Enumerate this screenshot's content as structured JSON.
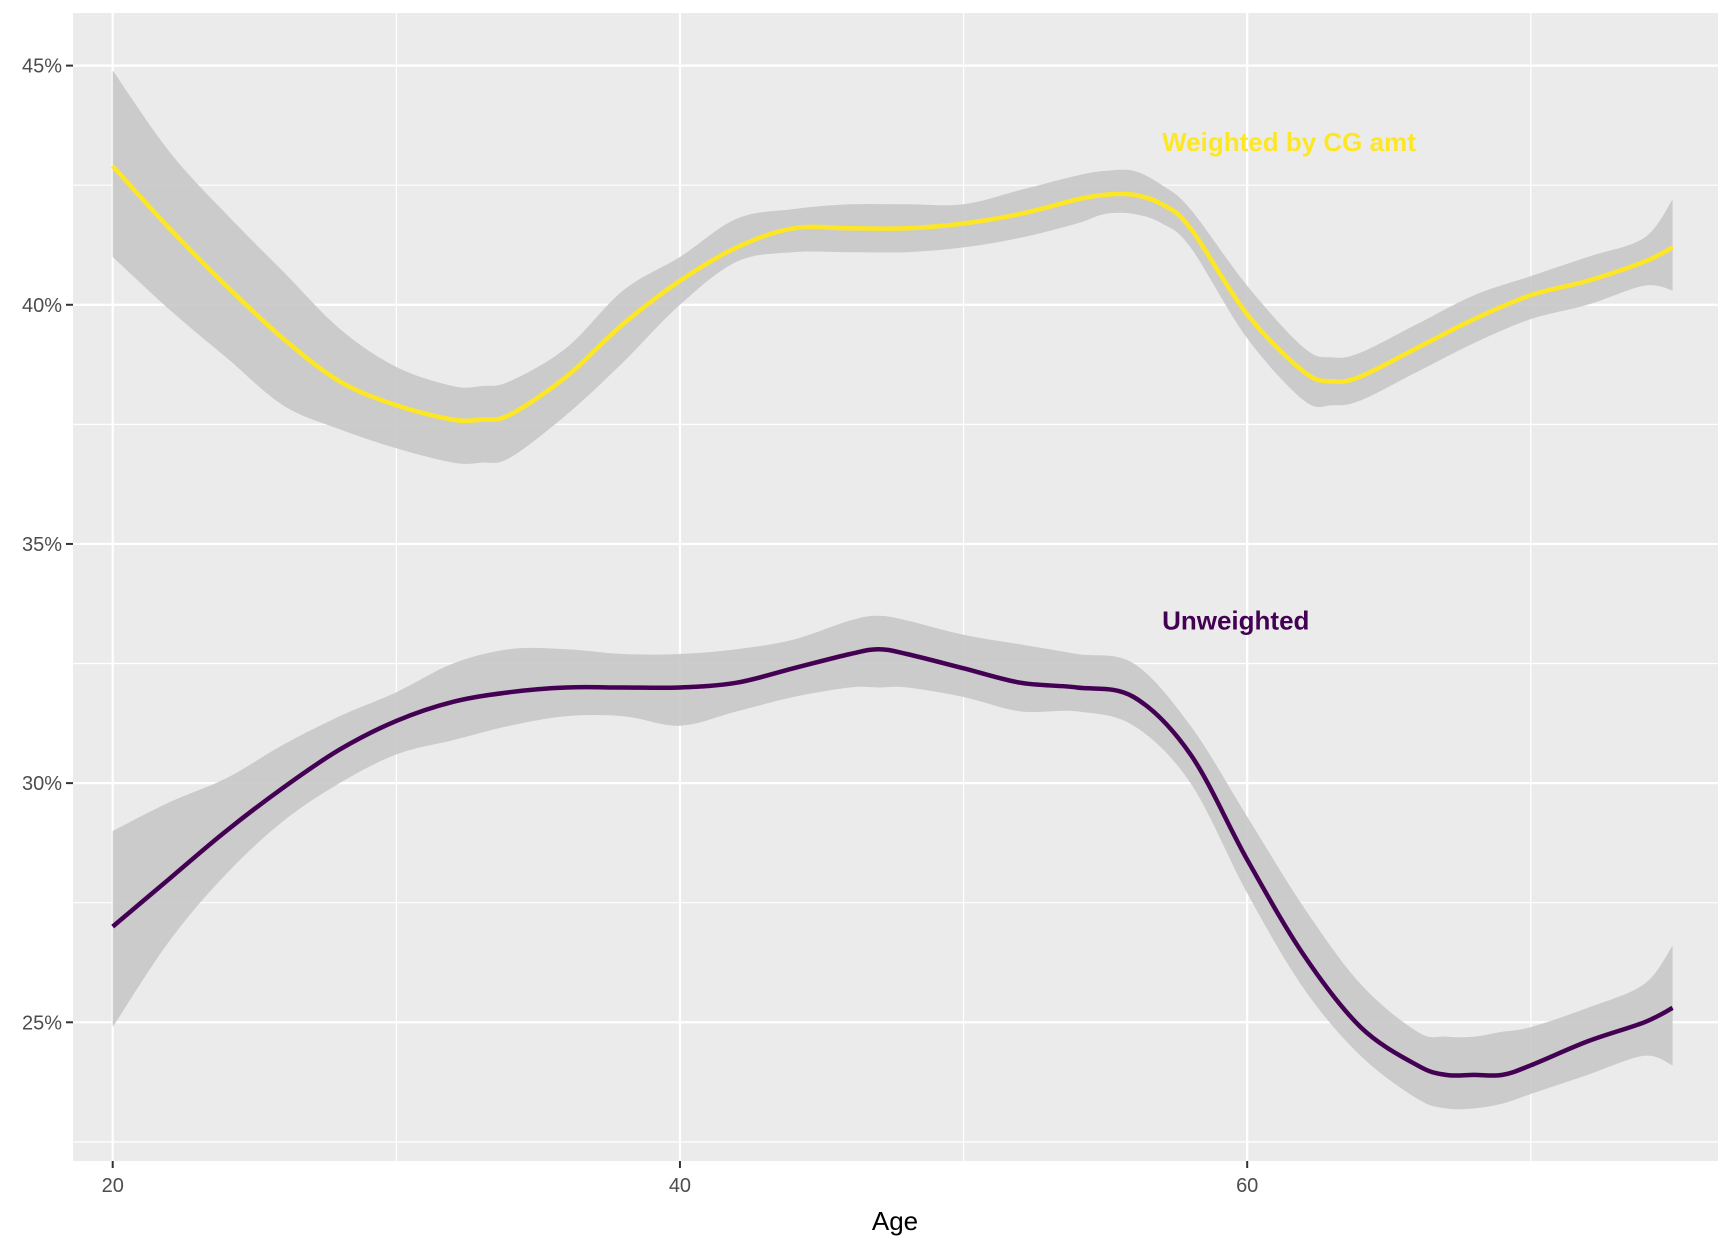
{
  "chart_data": {
    "type": "line",
    "title": "",
    "xlabel": "Age",
    "ylabel": "",
    "xlim": [
      18.6,
      76.6
    ],
    "ylim": [
      22.1,
      46.1
    ],
    "x_ticks": [
      20,
      40,
      60
    ],
    "x_tick_labels": [
      "20",
      "40",
      "60"
    ],
    "x_minor_ticks": [
      30,
      50,
      70
    ],
    "y_ticks": [
      25,
      30,
      35,
      40,
      45
    ],
    "y_tick_labels": [
      "25%",
      "30%",
      "35%",
      "40%",
      "45%"
    ],
    "y_minor_ticks": [
      22.5,
      27.5,
      32.5,
      37.5,
      42.5
    ],
    "grid": true,
    "legend": "none",
    "colors": {
      "panel_background": "#ebebeb",
      "grid": "#ffffff",
      "ribbon": "#c8c8c8",
      "weighted": "#fde725",
      "unweighted": "#440154"
    },
    "series": [
      {
        "name": "Weighted by CG amt",
        "color": "#fde725",
        "x": [
          20,
          22,
          24,
          26,
          28,
          30,
          32,
          33,
          34,
          36,
          38,
          40,
          42,
          44,
          46,
          48,
          50,
          52,
          54,
          55,
          56,
          57,
          58,
          60,
          62,
          63,
          64,
          66,
          68,
          70,
          72,
          74,
          75
        ],
        "y": [
          42.9,
          41.6,
          40.4,
          39.3,
          38.4,
          37.9,
          37.6,
          37.6,
          37.7,
          38.5,
          39.6,
          40.5,
          41.2,
          41.6,
          41.6,
          41.6,
          41.7,
          41.9,
          42.2,
          42.3,
          42.3,
          42.1,
          41.6,
          39.8,
          38.6,
          38.4,
          38.5,
          39.1,
          39.7,
          40.2,
          40.5,
          40.9,
          41.2
        ],
        "lower": [
          41.0,
          39.9,
          38.9,
          37.9,
          37.4,
          37.0,
          36.7,
          36.7,
          36.8,
          37.7,
          38.8,
          40.0,
          40.9,
          41.1,
          41.1,
          41.1,
          41.2,
          41.4,
          41.7,
          41.9,
          41.9,
          41.7,
          41.2,
          39.3,
          38.0,
          37.9,
          38.0,
          38.6,
          39.2,
          39.7,
          40.0,
          40.4,
          40.3
        ],
        "upper": [
          44.9,
          43.2,
          41.9,
          40.7,
          39.5,
          38.7,
          38.3,
          38.3,
          38.4,
          39.1,
          40.3,
          41.0,
          41.8,
          42.0,
          42.1,
          42.1,
          42.1,
          42.4,
          42.7,
          42.8,
          42.8,
          42.5,
          42.0,
          40.4,
          39.1,
          38.9,
          39.0,
          39.6,
          40.2,
          40.6,
          41.0,
          41.4,
          42.2
        ]
      },
      {
        "name": "Unweighted",
        "color": "#440154",
        "x": [
          20,
          22,
          24,
          26,
          28,
          30,
          32,
          34,
          36,
          38,
          40,
          42,
          44,
          46,
          47,
          48,
          50,
          52,
          54,
          56,
          58,
          60,
          62,
          64,
          66,
          67,
          68,
          69,
          70,
          72,
          74,
          75
        ],
        "y": [
          27.0,
          28.0,
          29.0,
          29.9,
          30.7,
          31.3,
          31.7,
          31.9,
          32.0,
          32.0,
          32.0,
          32.1,
          32.4,
          32.7,
          32.8,
          32.7,
          32.4,
          32.1,
          32.0,
          31.8,
          30.6,
          28.4,
          26.4,
          24.9,
          24.1,
          23.9,
          23.9,
          23.9,
          24.1,
          24.6,
          25.0,
          25.3
        ],
        "lower": [
          24.9,
          26.7,
          28.1,
          29.2,
          30.0,
          30.6,
          30.9,
          31.2,
          31.4,
          31.4,
          31.2,
          31.5,
          31.8,
          32.0,
          32.0,
          32.0,
          31.8,
          31.5,
          31.5,
          31.2,
          30.0,
          27.7,
          25.7,
          24.3,
          23.4,
          23.2,
          23.2,
          23.3,
          23.5,
          23.9,
          24.3,
          24.1
        ],
        "upper": [
          29.0,
          29.6,
          30.1,
          30.8,
          31.4,
          31.9,
          32.5,
          32.8,
          32.8,
          32.7,
          32.7,
          32.8,
          33.0,
          33.4,
          33.5,
          33.4,
          33.1,
          32.9,
          32.7,
          32.5,
          31.2,
          29.3,
          27.4,
          25.8,
          24.8,
          24.7,
          24.7,
          24.8,
          24.9,
          25.3,
          25.8,
          26.6
        ]
      }
    ],
    "annotations": [
      {
        "text": "Weighted by CG amt",
        "x": 57,
        "y": 43.4,
        "color": "#fde725"
      },
      {
        "text": "Unweighted",
        "x": 57,
        "y": 33.4,
        "color": "#440154"
      }
    ]
  }
}
